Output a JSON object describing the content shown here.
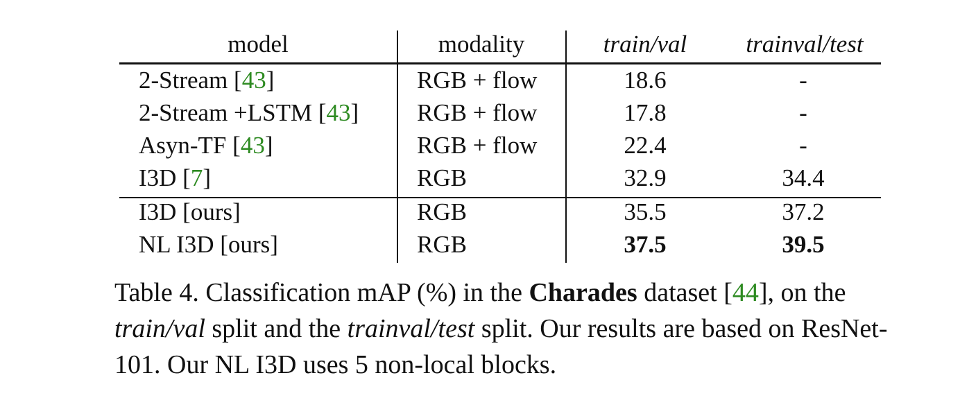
{
  "table": {
    "headers": {
      "model": "model",
      "modality": "modality",
      "trainval": "train/val",
      "trainvaltest": "trainval/test"
    },
    "rows": [
      {
        "model": "2-Stream [",
        "cite": "43",
        "close": "]",
        "modality": "RGB + flow",
        "train_val": "18.6",
        "trainval_test": "-"
      },
      {
        "model": "2-Stream +LSTM [",
        "cite": "43",
        "close": "]",
        "modality": "RGB + flow",
        "train_val": "17.8",
        "trainval_test": "-"
      },
      {
        "model": "Asyn-TF [",
        "cite": "43",
        "close": "]",
        "modality": "RGB + flow",
        "train_val": "22.4",
        "trainval_test": "-"
      },
      {
        "model": "I3D [",
        "cite": "7",
        "close": "]",
        "modality": "RGB",
        "train_val": "32.9",
        "trainval_test": "34.4"
      },
      {
        "model": "I3D [ours]",
        "modality": "RGB",
        "train_val": "35.5",
        "trainval_test": "37.2"
      },
      {
        "model": "NL I3D [ours]",
        "modality": "RGB",
        "train_val": "37.5",
        "trainval_test": "39.5"
      }
    ]
  },
  "caption": {
    "p1": "Table 4. Classification mAP (%) in the ",
    "bold": "Charades",
    "p2": " dataset [",
    "cite": "44",
    "p3": "], on the ",
    "it1": "train/val",
    "p4": " split and the ",
    "it2": "trainval/test",
    "p5": " split. Our results are based on ResNet-101. Our NL I3D uses 5 non-local blocks."
  }
}
